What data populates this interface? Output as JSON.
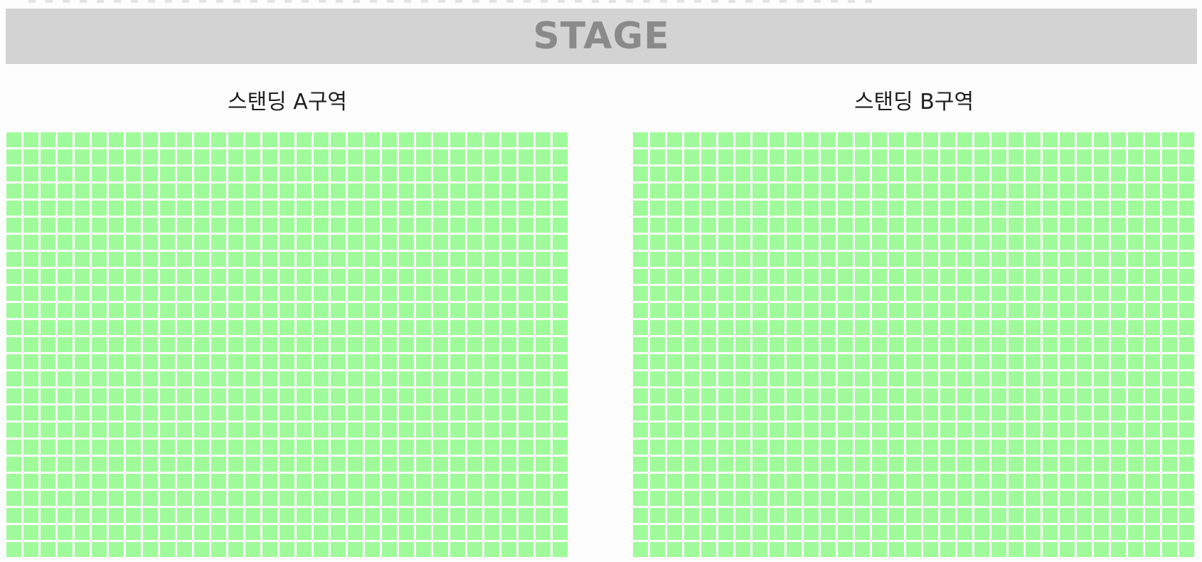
{
  "stage": {
    "label": "STAGE"
  },
  "sections": [
    {
      "id": "a",
      "title": "스탠딩 A구역",
      "rows": 25,
      "cols": 33
    },
    {
      "id": "b",
      "title": "스탠딩 B구역",
      "rows": 25,
      "cols": 33
    }
  ],
  "colors": {
    "seat_available": "#9ffb9a",
    "stage_background": "#d3d3d3",
    "stage_text": "#8a8a8a",
    "page_background": "#fdfdfd",
    "title_text": "#1e1e1e"
  }
}
